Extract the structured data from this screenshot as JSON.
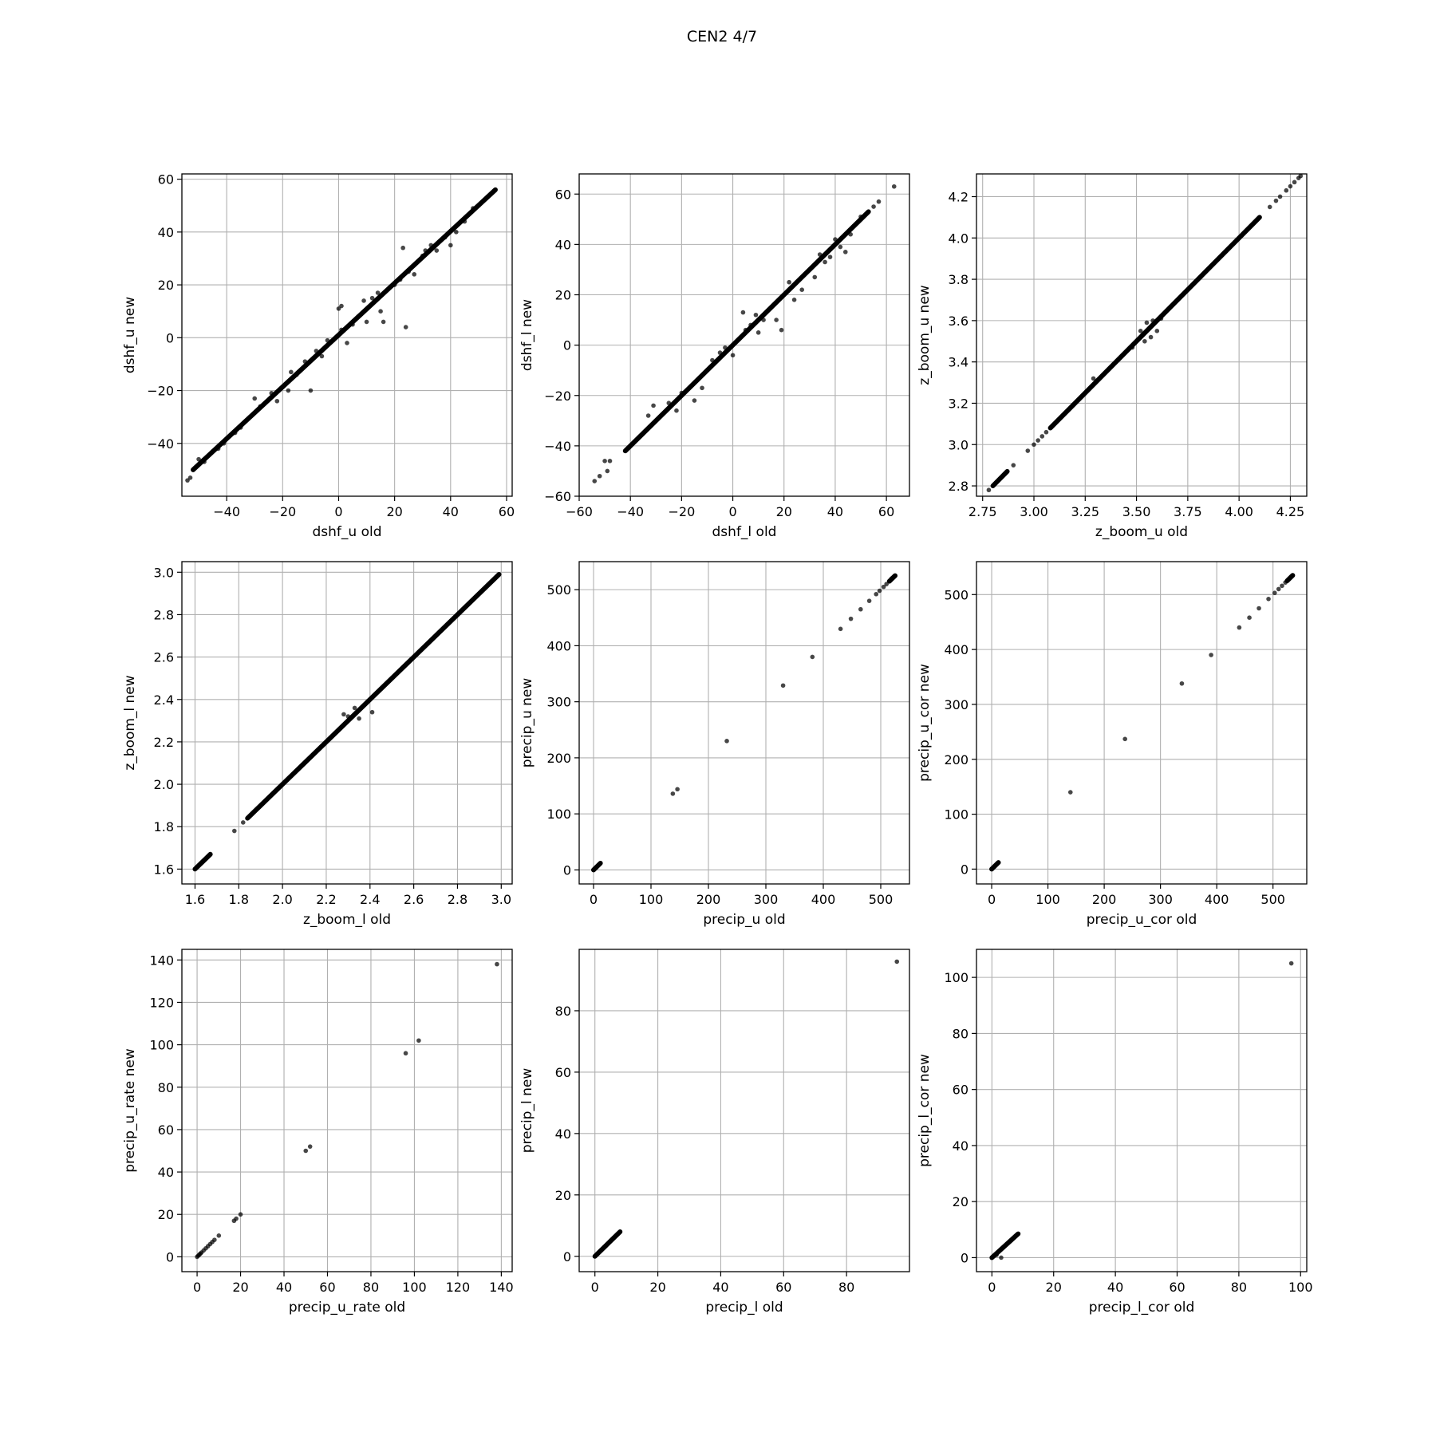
{
  "figure": {
    "title": "CEN2 4/7",
    "point_color": "#000000",
    "grid_color": "#b0b0b0"
  },
  "chart_data": [
    {
      "type": "scatter",
      "xlabel": "dshf_u old",
      "ylabel": "dshf_u new",
      "xlim": [
        -56,
        62
      ],
      "ylim": [
        -60,
        62
      ],
      "xticks": [
        -40,
        -20,
        0,
        20,
        40,
        60
      ],
      "yticks": [
        -40,
        -20,
        0,
        20,
        40,
        60
      ],
      "xtick_labels": [
        "−40",
        "−20",
        "0",
        "20",
        "40",
        "60"
      ],
      "ytick_labels": [
        "−40",
        "−20",
        "0",
        "20",
        "40",
        "60"
      ],
      "grid": true,
      "line_segments": [
        [
          -52,
          -50,
          56,
          56
        ]
      ],
      "points": [
        [
          -54,
          -54
        ],
        [
          -53,
          -53
        ],
        [
          -50,
          -46
        ],
        [
          -48,
          -47
        ],
        [
          -45,
          -43
        ],
        [
          -43,
          -42
        ],
        [
          -41,
          -40
        ],
        [
          -37,
          -36
        ],
        [
          -35,
          -34
        ],
        [
          -30,
          -23
        ],
        [
          -28,
          -26
        ],
        [
          -24,
          -21
        ],
        [
          -22,
          -24
        ],
        [
          -18,
          -20
        ],
        [
          -17,
          -13
        ],
        [
          -15,
          -14
        ],
        [
          -12,
          -9
        ],
        [
          -10,
          -20
        ],
        [
          -8,
          -5
        ],
        [
          -6,
          -7
        ],
        [
          -4,
          -1
        ],
        [
          -2,
          -1
        ],
        [
          0,
          11
        ],
        [
          1,
          12
        ],
        [
          1,
          3
        ],
        [
          3,
          -2
        ],
        [
          5,
          5
        ],
        [
          7,
          8
        ],
        [
          9,
          14
        ],
        [
          10,
          6
        ],
        [
          12,
          15
        ],
        [
          14,
          17
        ],
        [
          15,
          10
        ],
        [
          16,
          6
        ],
        [
          20,
          20
        ],
        [
          22,
          22
        ],
        [
          24,
          4
        ],
        [
          25,
          25
        ],
        [
          23,
          34
        ],
        [
          27,
          24
        ],
        [
          30,
          31
        ],
        [
          31,
          33
        ],
        [
          33,
          35
        ],
        [
          35,
          33
        ],
        [
          38,
          38
        ],
        [
          40,
          35
        ],
        [
          42,
          40
        ],
        [
          45,
          44
        ],
        [
          48,
          49
        ],
        [
          50,
          50
        ]
      ]
    },
    {
      "type": "scatter",
      "xlabel": "dshf_l old",
      "ylabel": "dshf_l new",
      "xlim": [
        -60,
        69
      ],
      "ylim": [
        -60,
        68
      ],
      "xticks": [
        -60,
        -40,
        -20,
        0,
        20,
        40,
        60
      ],
      "yticks": [
        -60,
        -40,
        -20,
        0,
        20,
        40,
        60
      ],
      "xtick_labels": [
        "−60",
        "−40",
        "−20",
        "0",
        "20",
        "40",
        "60"
      ],
      "ytick_labels": [
        "−60",
        "−40",
        "−20",
        "0",
        "20",
        "40",
        "60"
      ],
      "grid": true,
      "line_segments": [
        [
          -42,
          -42,
          53,
          53
        ]
      ],
      "points": [
        [
          -54,
          -54
        ],
        [
          -52,
          -52
        ],
        [
          -50,
          -46
        ],
        [
          -48,
          -46
        ],
        [
          -49,
          -50
        ],
        [
          -41,
          -41
        ],
        [
          -33,
          -28
        ],
        [
          -31,
          -24
        ],
        [
          -25,
          -23
        ],
        [
          -22,
          -26
        ],
        [
          -20,
          -19
        ],
        [
          -15,
          -22
        ],
        [
          -12,
          -17
        ],
        [
          -10,
          -10
        ],
        [
          -8,
          -6
        ],
        [
          -5,
          -3
        ],
        [
          -3,
          -1
        ],
        [
          0,
          -4
        ],
        [
          2,
          2
        ],
        [
          4,
          13
        ],
        [
          5,
          6
        ],
        [
          7,
          8
        ],
        [
          9,
          12
        ],
        [
          10,
          5
        ],
        [
          12,
          10
        ],
        [
          15,
          15
        ],
        [
          17,
          10
        ],
        [
          19,
          6
        ],
        [
          20,
          20
        ],
        [
          22,
          25
        ],
        [
          24,
          18
        ],
        [
          25,
          25
        ],
        [
          27,
          22
        ],
        [
          30,
          30
        ],
        [
          32,
          27
        ],
        [
          34,
          36
        ],
        [
          36,
          33
        ],
        [
          38,
          35
        ],
        [
          40,
          42
        ],
        [
          42,
          39
        ],
        [
          44,
          37
        ],
        [
          46,
          44
        ],
        [
          50,
          51
        ],
        [
          55,
          55
        ],
        [
          57,
          57
        ],
        [
          63,
          63
        ]
      ]
    },
    {
      "type": "scatter",
      "xlabel": "z_boom_u old",
      "ylabel": "z_boom_u new",
      "xlim": [
        2.72,
        4.33
      ],
      "ylim": [
        2.75,
        4.31
      ],
      "xticks": [
        2.75,
        3.0,
        3.25,
        3.5,
        3.75,
        4.0,
        4.25
      ],
      "yticks": [
        2.8,
        3.0,
        3.2,
        3.4,
        3.6,
        3.8,
        4.0,
        4.2
      ],
      "xtick_labels": [
        "2.75",
        "3.00",
        "3.25",
        "3.50",
        "3.75",
        "4.00",
        "4.25"
      ],
      "ytick_labels": [
        "2.8",
        "3.0",
        "3.2",
        "3.4",
        "3.6",
        "3.8",
        "4.0",
        "4.2"
      ],
      "grid": true,
      "line_segments": [
        [
          2.8,
          2.8,
          2.87,
          2.87
        ],
        [
          3.08,
          3.08,
          4.1,
          4.1
        ]
      ],
      "points": [
        [
          2.78,
          2.78
        ],
        [
          2.9,
          2.9
        ],
        [
          2.97,
          2.97
        ],
        [
          3.0,
          3.0
        ],
        [
          3.02,
          3.02
        ],
        [
          3.04,
          3.04
        ],
        [
          3.06,
          3.06
        ],
        [
          3.29,
          3.32
        ],
        [
          3.48,
          3.47
        ],
        [
          3.52,
          3.55
        ],
        [
          3.54,
          3.5
        ],
        [
          3.55,
          3.59
        ],
        [
          3.57,
          3.52
        ],
        [
          3.58,
          3.6
        ],
        [
          3.6,
          3.55
        ],
        [
          3.62,
          3.61
        ],
        [
          4.15,
          4.15
        ],
        [
          4.18,
          4.18
        ],
        [
          4.2,
          4.2
        ],
        [
          4.23,
          4.23
        ],
        [
          4.25,
          4.25
        ],
        [
          4.27,
          4.27
        ],
        [
          4.29,
          4.29
        ],
        [
          4.3,
          4.3
        ]
      ]
    },
    {
      "type": "scatter",
      "xlabel": "z_boom_l old",
      "ylabel": "z_boom_l new",
      "xlim": [
        1.54,
        3.05
      ],
      "ylim": [
        1.53,
        3.05
      ],
      "xticks": [
        1.6,
        1.8,
        2.0,
        2.2,
        2.4,
        2.6,
        2.8,
        3.0
      ],
      "yticks": [
        1.6,
        1.8,
        2.0,
        2.2,
        2.4,
        2.6,
        2.8,
        3.0
      ],
      "xtick_labels": [
        "1.6",
        "1.8",
        "2.0",
        "2.2",
        "2.4",
        "2.6",
        "2.8",
        "3.0"
      ],
      "ytick_labels": [
        "1.6",
        "1.8",
        "2.0",
        "2.2",
        "2.4",
        "2.6",
        "2.8",
        "3.0"
      ],
      "grid": true,
      "line_segments": [
        [
          1.6,
          1.6,
          1.67,
          1.67
        ],
        [
          1.84,
          1.84,
          2.99,
          2.99
        ]
      ],
      "points": [
        [
          1.78,
          1.78
        ],
        [
          1.82,
          1.82
        ],
        [
          2.28,
          2.33
        ],
        [
          2.3,
          2.32
        ],
        [
          2.33,
          2.36
        ],
        [
          2.35,
          2.31
        ],
        [
          2.41,
          2.34
        ],
        [
          2.45,
          2.45
        ],
        [
          2.48,
          2.48
        ]
      ]
    },
    {
      "type": "scatter",
      "xlabel": "precip_u old",
      "ylabel": "precip_u new",
      "xlim": [
        -25,
        550
      ],
      "ylim": [
        -25,
        550
      ],
      "xticks": [
        0,
        100,
        200,
        300,
        400,
        500
      ],
      "yticks": [
        0,
        100,
        200,
        300,
        400,
        500
      ],
      "xtick_labels": [
        "0",
        "100",
        "200",
        "300",
        "400",
        "500"
      ],
      "ytick_labels": [
        "0",
        "100",
        "200",
        "300",
        "400",
        "500"
      ],
      "grid": true,
      "line_segments": [
        [
          0,
          0,
          12,
          12
        ],
        [
          515,
          515,
          525,
          525
        ]
      ],
      "points": [
        [
          0,
          0
        ],
        [
          2,
          2
        ],
        [
          4,
          4
        ],
        [
          6,
          6
        ],
        [
          8,
          8
        ],
        [
          10,
          10
        ],
        [
          12,
          12
        ],
        [
          138,
          136
        ],
        [
          146,
          144
        ],
        [
          232,
          230
        ],
        [
          330,
          329
        ],
        [
          381,
          380
        ],
        [
          430,
          430
        ],
        [
          448,
          448
        ],
        [
          465,
          465
        ],
        [
          480,
          480
        ],
        [
          492,
          492
        ],
        [
          498,
          498
        ],
        [
          505,
          505
        ],
        [
          510,
          510
        ],
        [
          515,
          515
        ],
        [
          519,
          520
        ],
        [
          522,
          522
        ],
        [
          525,
          525
        ]
      ]
    },
    {
      "type": "scatter",
      "xlabel": "precip_u_cor old",
      "ylabel": "precip_u_cor new",
      "xlim": [
        -27,
        560
      ],
      "ylim": [
        -27,
        560
      ],
      "xticks": [
        0,
        100,
        200,
        300,
        400,
        500
      ],
      "yticks": [
        0,
        100,
        200,
        300,
        400,
        500
      ],
      "xtick_labels": [
        "0",
        "100",
        "200",
        "300",
        "400",
        "500"
      ],
      "ytick_labels": [
        "0",
        "100",
        "200",
        "300",
        "400",
        "500"
      ],
      "grid": true,
      "line_segments": [
        [
          0,
          0,
          12,
          12
        ],
        [
          525,
          525,
          535,
          535
        ]
      ],
      "points": [
        [
          0,
          0
        ],
        [
          3,
          3
        ],
        [
          6,
          6
        ],
        [
          9,
          9
        ],
        [
          12,
          12
        ],
        [
          140,
          140
        ],
        [
          237,
          237
        ],
        [
          338,
          338
        ],
        [
          390,
          390
        ],
        [
          440,
          440
        ],
        [
          458,
          458
        ],
        [
          475,
          475
        ],
        [
          492,
          492
        ],
        [
          503,
          503
        ],
        [
          510,
          510
        ],
        [
          516,
          516
        ],
        [
          522,
          522
        ],
        [
          528,
          528
        ],
        [
          532,
          532
        ],
        [
          535,
          535
        ]
      ]
    },
    {
      "type": "scatter",
      "xlabel": "precip_u_rate old",
      "ylabel": "precip_u_rate new",
      "xlim": [
        -7,
        145
      ],
      "ylim": [
        -7,
        145
      ],
      "xticks": [
        0,
        20,
        40,
        60,
        80,
        100,
        120,
        140
      ],
      "yticks": [
        0,
        20,
        40,
        60,
        80,
        100,
        120,
        140
      ],
      "xtick_labels": [
        "0",
        "20",
        "40",
        "60",
        "80",
        "100",
        "120",
        "140"
      ],
      "ytick_labels": [
        "0",
        "20",
        "40",
        "60",
        "80",
        "100",
        "120",
        "140"
      ],
      "grid": true,
      "line_segments": [],
      "points": [
        [
          0,
          0
        ],
        [
          0.5,
          0.5
        ],
        [
          1,
          1
        ],
        [
          1.5,
          1.5
        ],
        [
          2,
          2
        ],
        [
          3,
          3
        ],
        [
          4,
          4
        ],
        [
          5,
          5
        ],
        [
          6,
          6
        ],
        [
          7,
          7
        ],
        [
          8,
          8
        ],
        [
          10,
          10
        ],
        [
          17,
          17
        ],
        [
          18,
          18
        ],
        [
          20,
          20
        ],
        [
          50,
          50
        ],
        [
          52,
          52
        ],
        [
          96,
          96
        ],
        [
          102,
          102
        ],
        [
          138,
          138
        ]
      ]
    },
    {
      "type": "scatter",
      "xlabel": "precip_l old",
      "ylabel": "precip_l new",
      "xlim": [
        -5,
        100
      ],
      "ylim": [
        -5,
        100
      ],
      "xticks": [
        0,
        20,
        40,
        60,
        80
      ],
      "yticks": [
        0,
        20,
        40,
        60,
        80
      ],
      "xtick_labels": [
        "0",
        "20",
        "40",
        "60",
        "80"
      ],
      "ytick_labels": [
        "0",
        "20",
        "40",
        "60",
        "80"
      ],
      "grid": true,
      "line_segments": [
        [
          0,
          0,
          8,
          8
        ]
      ],
      "points": [
        [
          0,
          0
        ],
        [
          0.5,
          0.5
        ],
        [
          1,
          1
        ],
        [
          1.5,
          1.5
        ],
        [
          2,
          2
        ],
        [
          3,
          3
        ],
        [
          4,
          4
        ],
        [
          5,
          5
        ],
        [
          6,
          6
        ],
        [
          7,
          7
        ],
        [
          8,
          8
        ],
        [
          96,
          96
        ]
      ]
    },
    {
      "type": "scatter",
      "xlabel": "precip_l_cor old",
      "ylabel": "precip_l_cor new",
      "xlim": [
        -5,
        102
      ],
      "ylim": [
        -5,
        110
      ],
      "xticks": [
        0,
        20,
        40,
        60,
        80,
        100
      ],
      "yticks": [
        0,
        20,
        40,
        60,
        80,
        100
      ],
      "xtick_labels": [
        "0",
        "20",
        "40",
        "60",
        "80",
        "100"
      ],
      "ytick_labels": [
        "0",
        "20",
        "40",
        "60",
        "80",
        "100"
      ],
      "grid": true,
      "line_segments": [
        [
          0,
          0,
          8.5,
          8.5
        ]
      ],
      "points": [
        [
          0,
          0
        ],
        [
          0.5,
          0.5
        ],
        [
          1,
          1
        ],
        [
          1.5,
          1
        ],
        [
          3,
          0
        ],
        [
          3,
          3
        ],
        [
          4,
          4
        ],
        [
          5,
          5
        ],
        [
          6,
          6
        ],
        [
          7,
          7
        ],
        [
          8,
          8
        ],
        [
          97,
          105
        ]
      ]
    }
  ]
}
